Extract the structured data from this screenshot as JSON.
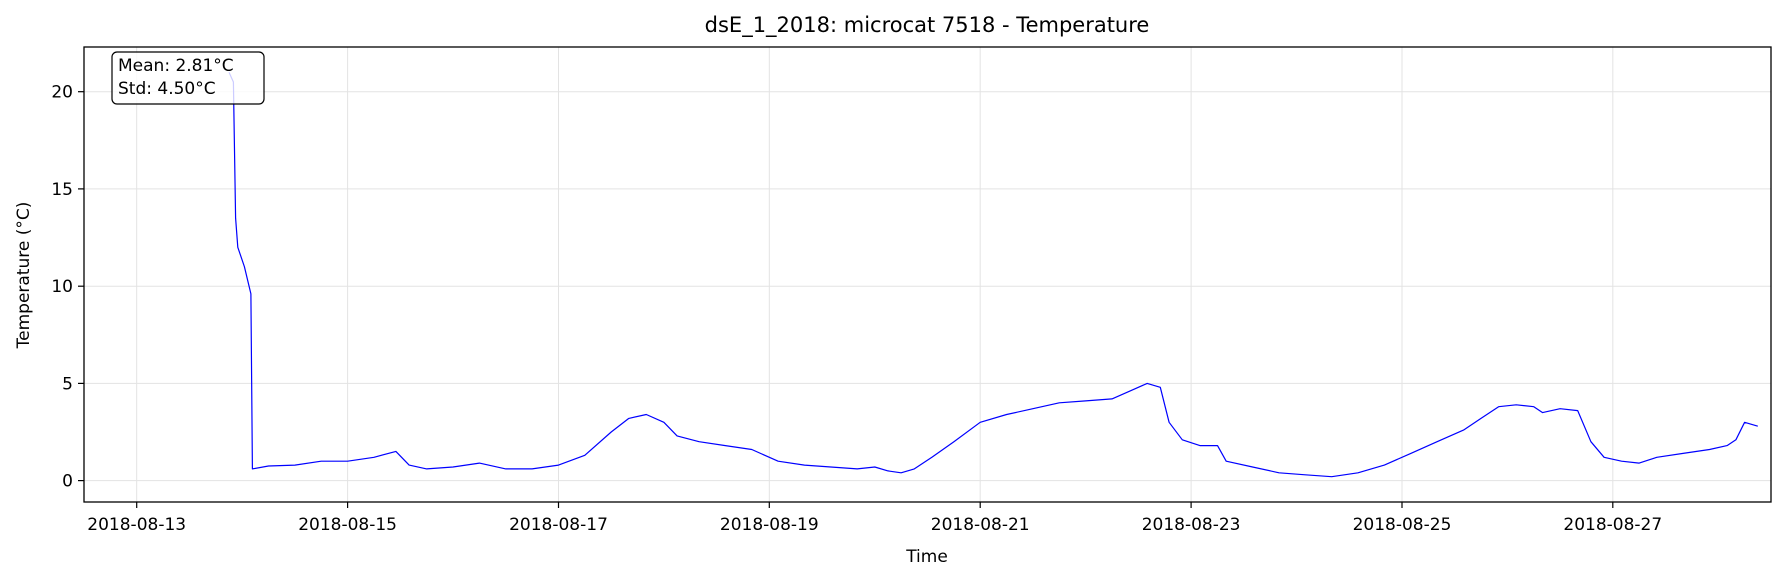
{
  "chart_data": {
    "type": "line",
    "title": "dsE_1_2018: microcat 7518 - Temperature",
    "xlabel": "Time",
    "ylabel": "Temperature (°C)",
    "x_type": "date",
    "xlim": [
      "2018-08-12 12:00",
      "2018-08-28 12:00"
    ],
    "ylim": [
      -1.1,
      22.3
    ],
    "x_ticks": [
      "2018-08-13",
      "2018-08-15",
      "2018-08-17",
      "2018-08-19",
      "2018-08-21",
      "2018-08-23",
      "2018-08-25",
      "2018-08-27"
    ],
    "y_ticks": [
      0,
      5,
      10,
      15,
      20
    ],
    "grid": true,
    "stats": {
      "mean": "Mean: 2.81°C",
      "std": "Std: 4.50°C"
    },
    "series": [
      {
        "color": "#0000ff",
        "points": [
          [
            "2018-08-13 21:00",
            21.0
          ],
          [
            "2018-08-13 22:00",
            20.5
          ],
          [
            "2018-08-13 22:30",
            13.5
          ],
          [
            "2018-08-13 23:00",
            12.0
          ],
          [
            "2018-08-14 00:30",
            11.0
          ],
          [
            "2018-08-14 02:00",
            9.6
          ],
          [
            "2018-08-14 02:20",
            0.6
          ],
          [
            "2018-08-14 06:00",
            0.75
          ],
          [
            "2018-08-14 12:00",
            0.8
          ],
          [
            "2018-08-14 18:00",
            1.0
          ],
          [
            "2018-08-15 00:00",
            1.0
          ],
          [
            "2018-08-15 06:00",
            1.2
          ],
          [
            "2018-08-15 11:00",
            1.5
          ],
          [
            "2018-08-15 14:00",
            0.8
          ],
          [
            "2018-08-15 18:00",
            0.6
          ],
          [
            "2018-08-16 00:00",
            0.7
          ],
          [
            "2018-08-16 06:00",
            0.9
          ],
          [
            "2018-08-16 12:00",
            0.6
          ],
          [
            "2018-08-16 18:00",
            0.6
          ],
          [
            "2018-08-17 00:00",
            0.8
          ],
          [
            "2018-08-17 06:00",
            1.3
          ],
          [
            "2018-08-17 12:00",
            2.5
          ],
          [
            "2018-08-17 16:00",
            3.2
          ],
          [
            "2018-08-17 20:00",
            3.4
          ],
          [
            "2018-08-18 00:00",
            3.0
          ],
          [
            "2018-08-18 03:00",
            2.3
          ],
          [
            "2018-08-18 08:00",
            2.0
          ],
          [
            "2018-08-18 14:00",
            1.8
          ],
          [
            "2018-08-18 20:00",
            1.6
          ],
          [
            "2018-08-19 02:00",
            1.0
          ],
          [
            "2018-08-19 08:00",
            0.8
          ],
          [
            "2018-08-19 14:00",
            0.7
          ],
          [
            "2018-08-19 20:00",
            0.6
          ],
          [
            "2018-08-20 00:00",
            0.7
          ],
          [
            "2018-08-20 03:00",
            0.5
          ],
          [
            "2018-08-20 06:00",
            0.4
          ],
          [
            "2018-08-20 09:00",
            0.6
          ],
          [
            "2018-08-20 13:00",
            1.2
          ],
          [
            "2018-08-20 18:00",
            2.0
          ],
          [
            "2018-08-21 00:00",
            3.0
          ],
          [
            "2018-08-21 06:00",
            3.4
          ],
          [
            "2018-08-21 12:00",
            3.7
          ],
          [
            "2018-08-21 18:00",
            4.0
          ],
          [
            "2018-08-22 00:00",
            4.1
          ],
          [
            "2018-08-22 06:00",
            4.2
          ],
          [
            "2018-08-22 10:00",
            4.6
          ],
          [
            "2018-08-22 14:00",
            5.0
          ],
          [
            "2018-08-22 17:00",
            4.8
          ],
          [
            "2018-08-22 19:00",
            3.0
          ],
          [
            "2018-08-22 22:00",
            2.1
          ],
          [
            "2018-08-23 02:00",
            1.8
          ],
          [
            "2018-08-23 06:00",
            1.8
          ],
          [
            "2018-08-23 08:00",
            1.0
          ],
          [
            "2018-08-23 14:00",
            0.7
          ],
          [
            "2018-08-23 20:00",
            0.4
          ],
          [
            "2018-08-24 02:00",
            0.3
          ],
          [
            "2018-08-24 08:00",
            0.2
          ],
          [
            "2018-08-24 14:00",
            0.4
          ],
          [
            "2018-08-24 20:00",
            0.8
          ],
          [
            "2018-08-25 02:00",
            1.4
          ],
          [
            "2018-08-25 08:00",
            2.0
          ],
          [
            "2018-08-25 14:00",
            2.6
          ],
          [
            "2018-08-25 18:00",
            3.2
          ],
          [
            "2018-08-25 22:00",
            3.8
          ],
          [
            "2018-08-26 02:00",
            3.9
          ],
          [
            "2018-08-26 06:00",
            3.8
          ],
          [
            "2018-08-26 08:00",
            3.5
          ],
          [
            "2018-08-26 12:00",
            3.7
          ],
          [
            "2018-08-26 16:00",
            3.6
          ],
          [
            "2018-08-26 19:00",
            2.0
          ],
          [
            "2018-08-26 22:00",
            1.2
          ],
          [
            "2018-08-27 02:00",
            1.0
          ],
          [
            "2018-08-27 06:00",
            0.9
          ],
          [
            "2018-08-27 10:00",
            1.2
          ],
          [
            "2018-08-27 16:00",
            1.4
          ],
          [
            "2018-08-27 22:00",
            1.6
          ],
          [
            "2018-08-28 02:00",
            1.8
          ],
          [
            "2018-08-28 04:00",
            2.1
          ],
          [
            "2018-08-28 06:00",
            3.0
          ],
          [
            "2018-08-28 09:00",
            2.8
          ]
        ]
      }
    ]
  }
}
